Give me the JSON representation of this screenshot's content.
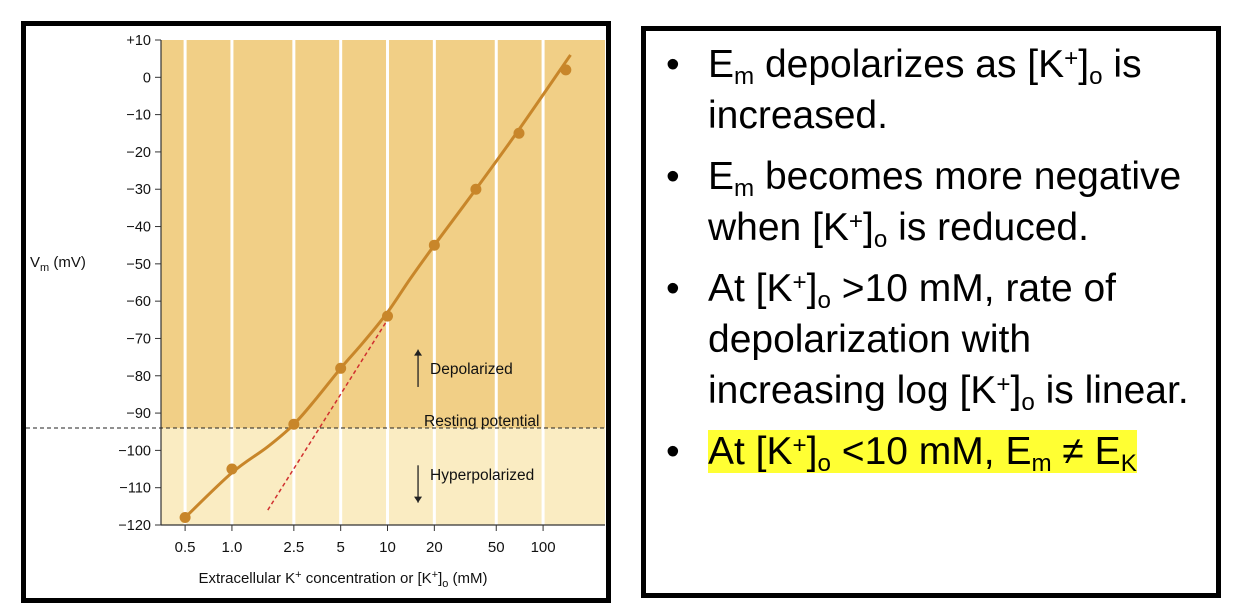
{
  "chart_data": {
    "type": "scatter",
    "x_scale": "log",
    "x_ticks": [
      0.5,
      1.0,
      2.5,
      5,
      10,
      20,
      50,
      100
    ],
    "x_tick_labels": [
      "0.5",
      "1.0",
      "2.5",
      "5",
      "10",
      "20",
      "50",
      "100"
    ],
    "xlim": [
      0.35,
      250
    ],
    "xlabel_parts": {
      "a": "Extracellular K",
      "sup": "+",
      "b": " concentration or [K",
      "sup2": "+",
      "c": "]",
      "sub": "o",
      "d": " (mM)"
    },
    "y_ticks": [
      10,
      0,
      -10,
      -20,
      -30,
      -40,
      -50,
      -60,
      -70,
      -80,
      -90,
      -100,
      -110,
      -120
    ],
    "y_tick_labels": [
      "+10",
      "0",
      "−10",
      "−20",
      "−30",
      "−40",
      "−50",
      "−60",
      "−70",
      "−80",
      "−90",
      "−100",
      "−110",
      "−120"
    ],
    "ylim": [
      -120,
      10
    ],
    "ylabel_parts": {
      "a": "V",
      "sub": "m",
      "b": " (mV)"
    },
    "points": [
      {
        "x": 0.5,
        "y": -118
      },
      {
        "x": 1.0,
        "y": -105
      },
      {
        "x": 2.5,
        "y": -93
      },
      {
        "x": 5,
        "y": -78
      },
      {
        "x": 10,
        "y": -64
      },
      {
        "x": 20,
        "y": -45
      },
      {
        "x": 37,
        "y": -30
      },
      {
        "x": 70,
        "y": -15
      },
      {
        "x": 140,
        "y": 2
      }
    ],
    "fit_curve": [
      {
        "x": 0.5,
        "y": -118
      },
      {
        "x": 1.0,
        "y": -106
      },
      {
        "x": 1.7,
        "y": -99
      },
      {
        "x": 2.5,
        "y": -93
      },
      {
        "x": 3.5,
        "y": -86
      },
      {
        "x": 5,
        "y": -78
      },
      {
        "x": 7,
        "y": -71
      },
      {
        "x": 10,
        "y": -63
      },
      {
        "x": 14,
        "y": -54
      },
      {
        "x": 20,
        "y": -45
      },
      {
        "x": 37,
        "y": -30
      },
      {
        "x": 70,
        "y": -14
      },
      {
        "x": 150,
        "y": 6
      }
    ],
    "nernst_line": [
      {
        "x": 1.7,
        "y": -116
      },
      {
        "x": 10,
        "y": -65
      }
    ],
    "resting_potential": -94,
    "annotations": {
      "depolarized": "Depolarized",
      "resting": "Resting potential",
      "hyperpolarized": "Hyperpolarized"
    },
    "colors": {
      "upper_region": "#f1cf86",
      "lower_region": "#faecc2",
      "series": "#c8862a",
      "nernst": "#d03030",
      "gridline": "#ffffff"
    }
  },
  "bullets": [
    {
      "parts": [
        {
          "t": "E"
        },
        {
          "sub": "m"
        },
        {
          "t": " depolarizes as [K"
        },
        {
          "sup": "+"
        },
        {
          "t": "]"
        },
        {
          "sub": "o"
        },
        {
          "t": " is increased."
        }
      ]
    },
    {
      "parts": [
        {
          "t": "E"
        },
        {
          "sub": "m"
        },
        {
          "t": " becomes more negative when [K"
        },
        {
          "sup": "+"
        },
        {
          "t": "]"
        },
        {
          "sub": "o"
        },
        {
          "t": " is reduced."
        }
      ]
    },
    {
      "parts": [
        {
          "t": "At [K"
        },
        {
          "sup": "+"
        },
        {
          "t": "]"
        },
        {
          "sub": "o"
        },
        {
          "t": " >10 mM, rate of depolarization with increasing log [K"
        },
        {
          "sup": "+"
        },
        {
          "t": "]"
        },
        {
          "sub": "o"
        },
        {
          "t": " is linear."
        }
      ]
    },
    {
      "highlight": true,
      "parts": [
        {
          "t": "At [K"
        },
        {
          "sup": "+"
        },
        {
          "t": "]"
        },
        {
          "sub": "o"
        },
        {
          "t": " <10 mM, E"
        },
        {
          "sub": "m"
        },
        {
          "t": " ≠ E"
        },
        {
          "sub": "K"
        }
      ]
    }
  ],
  "bullet_symbol": "•"
}
